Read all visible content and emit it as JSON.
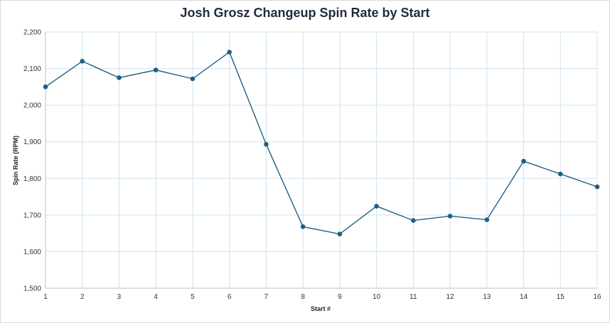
{
  "chart_data": {
    "type": "line",
    "title": "Josh Grosz Changeup Spin Rate by Start",
    "xlabel": "Start #",
    "ylabel": "Spin Rate (RPM)",
    "x": [
      1,
      2,
      3,
      4,
      5,
      6,
      7,
      8,
      9,
      10,
      11,
      12,
      13,
      14,
      15,
      16
    ],
    "xticks": [
      "1",
      "2",
      "3",
      "4",
      "5",
      "6",
      "7",
      "8",
      "9",
      "10",
      "11",
      "12",
      "13",
      "14",
      "15",
      "16"
    ],
    "yticks": [
      "1,500",
      "1,600",
      "1,700",
      "1,800",
      "1,900",
      "2,000",
      "2,100",
      "2,200"
    ],
    "ylim": [
      1500,
      2200
    ],
    "grid": true,
    "series": [
      {
        "values": [
          2050,
          2120,
          2075,
          2096,
          2072,
          2145,
          1893,
          1668,
          1648,
          1724,
          1685,
          1697,
          1687,
          1847,
          1812,
          1777
        ],
        "color": "#1f5f82"
      }
    ]
  }
}
